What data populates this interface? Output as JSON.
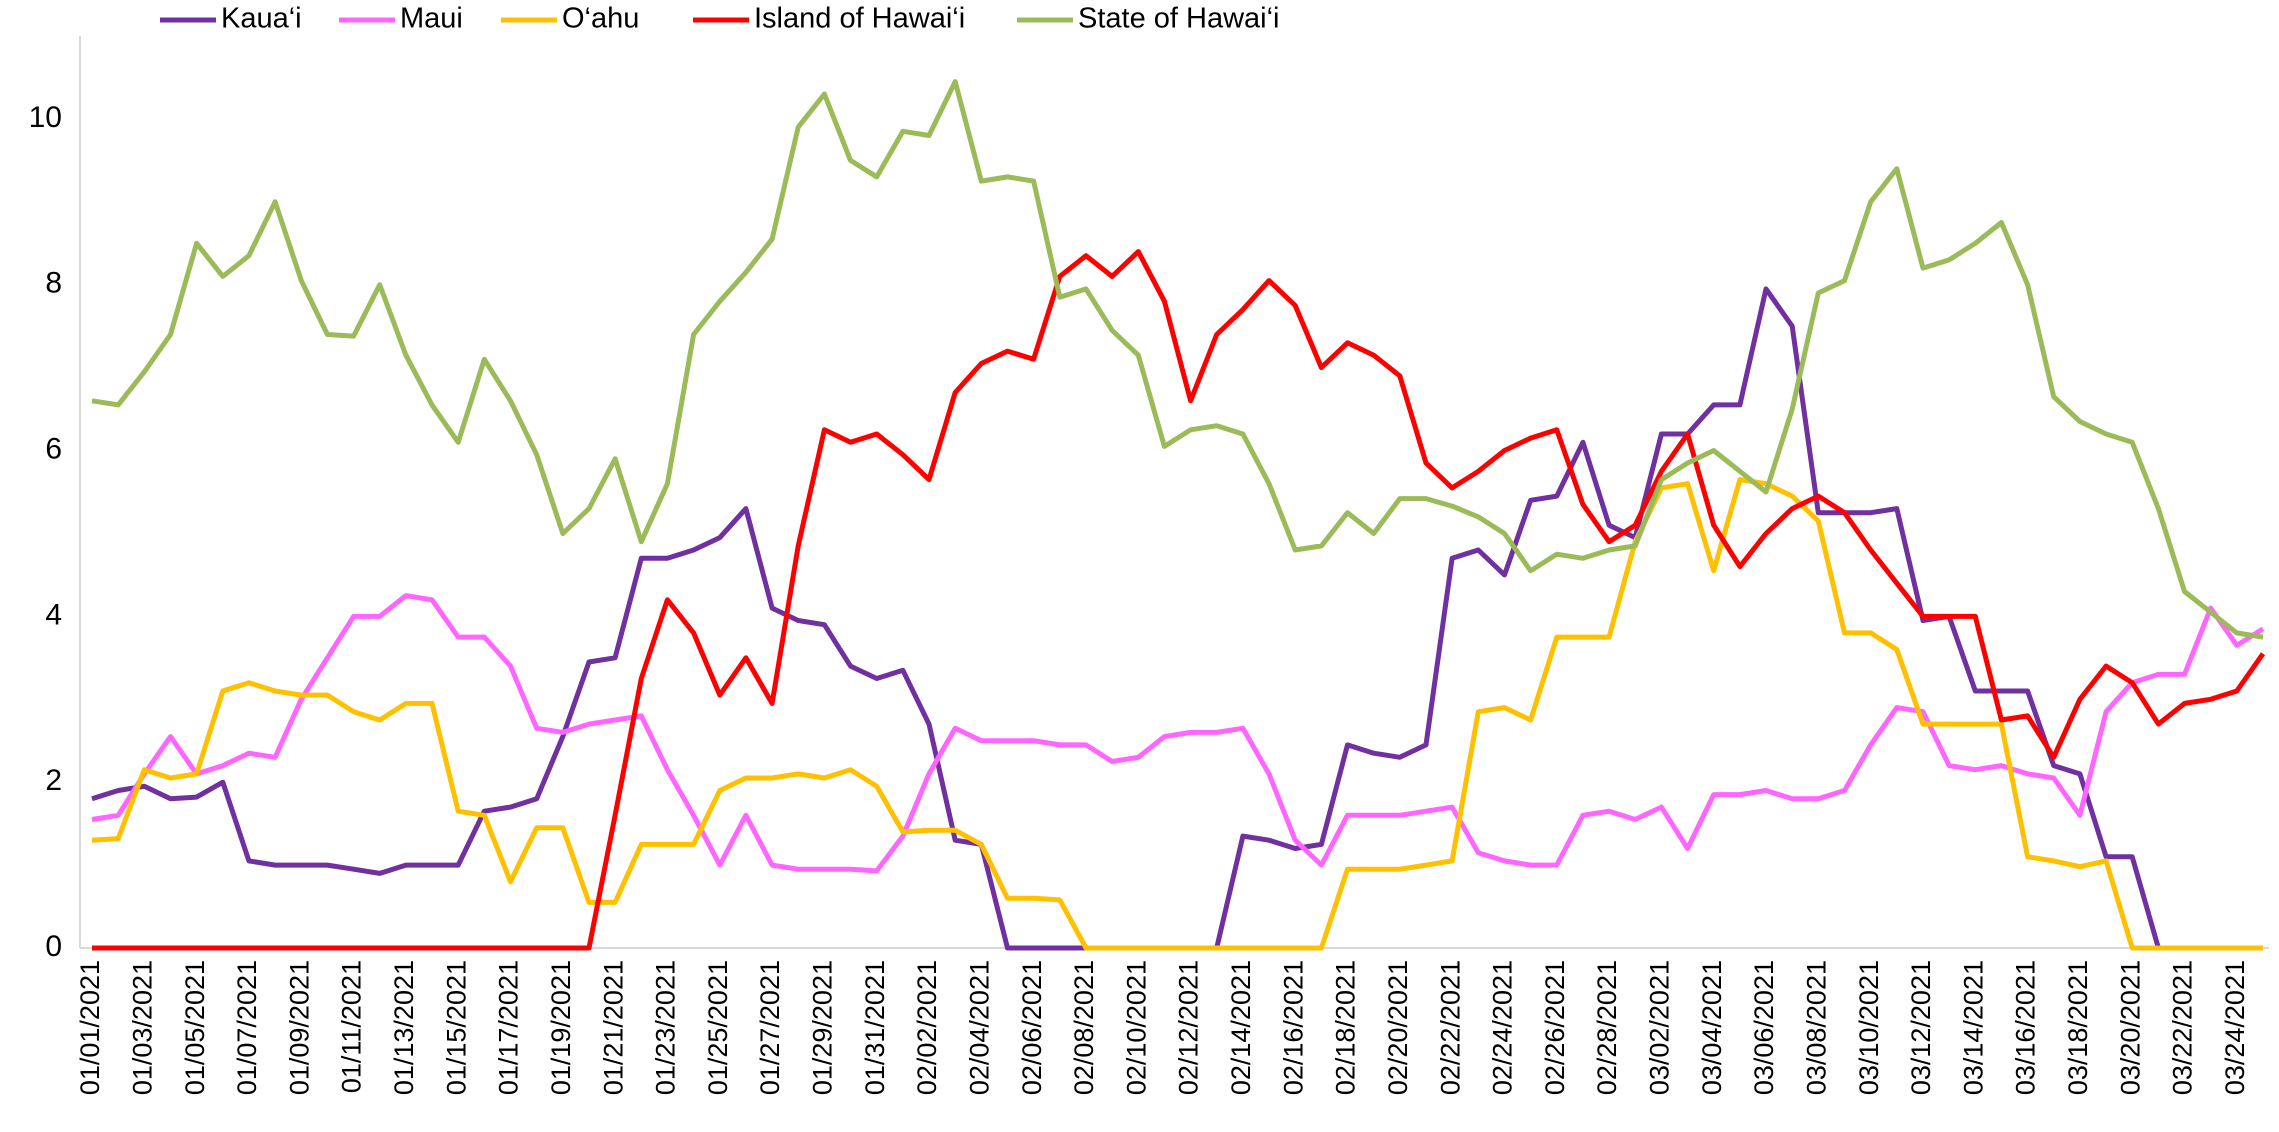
{
  "chart_data": {
    "type": "line",
    "categories": [
      "01/01/2021",
      null,
      "01/03/2021",
      null,
      "01/05/2021",
      null,
      "01/07/2021",
      null,
      "01/09/2021",
      null,
      "01/11/2021",
      null,
      "01/13/2021",
      null,
      "01/15/2021",
      null,
      "01/17/2021",
      null,
      "01/19/2021",
      null,
      "01/21/2021",
      null,
      "01/23/2021",
      null,
      "01/25/2021",
      null,
      "01/27/2021",
      null,
      "01/29/2021",
      null,
      "01/31/2021",
      null,
      "02/02/2021",
      null,
      "02/04/2021",
      null,
      "02/06/2021",
      null,
      "02/08/2021",
      null,
      "02/10/2021",
      null,
      "02/12/2021",
      null,
      "02/14/2021",
      null,
      "02/16/2021",
      null,
      "02/18/2021",
      null,
      "02/20/2021",
      null,
      "02/22/2021",
      null,
      "02/24/2021",
      null,
      "02/26/2021",
      null,
      "02/28/2021",
      null,
      "03/02/2021",
      null,
      "03/04/2021",
      null,
      "03/06/2021",
      null,
      "03/08/2021",
      null,
      "03/10/2021",
      null,
      "03/12/2021",
      null,
      "03/14/2021",
      null,
      "03/16/2021",
      null,
      "03/18/2021",
      null,
      "03/20/2021",
      null,
      "03/22/2021",
      null,
      "03/24/2021",
      null
    ],
    "series": [
      {
        "name": "Kaua‘i",
        "color": "#7030a0",
        "values": [
          1.8,
          1.9,
          1.95,
          1.8,
          1.82,
          2.0,
          1.05,
          1.0,
          1.0,
          1.0,
          0.95,
          0.9,
          1.0,
          1.0,
          1.0,
          1.65,
          1.7,
          1.8,
          2.55,
          3.45,
          3.5,
          4.7,
          4.7,
          4.8,
          4.95,
          5.3,
          4.1,
          3.95,
          3.9,
          3.4,
          3.25,
          3.35,
          2.7,
          1.3,
          1.25,
          0,
          0,
          0,
          0,
          0,
          0,
          0,
          0,
          0,
          1.35,
          1.3,
          1.2,
          1.25,
          2.45,
          2.35,
          2.3,
          2.45,
          4.7,
          4.8,
          4.5,
          5.4,
          5.45,
          6.1,
          5.1,
          4.95,
          6.2,
          6.2,
          6.55,
          6.55,
          7.95,
          7.5,
          5.25,
          5.25,
          5.25,
          5.3,
          3.95,
          4.0,
          3.1,
          3.1,
          3.1,
          2.2,
          2.1,
          1.1,
          1.1,
          0,
          0,
          0,
          0,
          0
        ]
      },
      {
        "name": "Maui",
        "color": "#ff66ff",
        "values": [
          1.55,
          1.6,
          2.1,
          2.55,
          2.1,
          2.2,
          2.35,
          2.3,
          3.0,
          3.5,
          4.0,
          4.0,
          4.25,
          4.2,
          3.75,
          3.75,
          3.4,
          2.65,
          2.6,
          2.7,
          2.75,
          2.8,
          2.15,
          1.6,
          1.0,
          1.6,
          1.0,
          0.95,
          0.95,
          0.95,
          0.93,
          1.35,
          2.1,
          2.65,
          2.5,
          2.5,
          2.5,
          2.45,
          2.45,
          2.25,
          2.3,
          2.55,
          2.6,
          2.6,
          2.65,
          2.1,
          1.3,
          1.0,
          1.6,
          1.6,
          1.6,
          1.65,
          1.7,
          1.15,
          1.05,
          1.0,
          1.0,
          1.6,
          1.65,
          1.55,
          1.7,
          1.2,
          1.85,
          1.85,
          1.9,
          1.8,
          1.8,
          1.9,
          2.45,
          2.9,
          2.85,
          2.2,
          2.15,
          2.2,
          2.1,
          2.05,
          1.6,
          2.85,
          3.2,
          3.3,
          3.3,
          4.1,
          3.65,
          3.85
        ]
      },
      {
        "name": "O‘ahu",
        "color": "#ffc000",
        "values": [
          1.3,
          1.32,
          2.15,
          2.05,
          2.1,
          3.1,
          3.2,
          3.1,
          3.05,
          3.05,
          2.85,
          2.75,
          2.95,
          2.95,
          1.65,
          1.6,
          0.8,
          1.45,
          1.45,
          0.55,
          0.55,
          1.25,
          1.25,
          1.25,
          1.9,
          2.05,
          2.05,
          2.1,
          2.05,
          2.15,
          1.95,
          1.4,
          1.42,
          1.42,
          1.25,
          0.6,
          0.6,
          0.58,
          0,
          0,
          0,
          0,
          0,
          0,
          0,
          0,
          0,
          0,
          0.95,
          0.95,
          0.95,
          1.0,
          1.05,
          2.85,
          2.9,
          2.75,
          3.75,
          3.75,
          3.75,
          4.9,
          5.55,
          5.6,
          4.55,
          5.65,
          5.6,
          5.45,
          5.15,
          3.8,
          3.8,
          3.6,
          2.7,
          2.7,
          2.7,
          2.7,
          1.1,
          1.05,
          0.98,
          1.05,
          0,
          0,
          0,
          0,
          0,
          0
        ]
      },
      {
        "name": "Island of Hawai‘i",
        "color": "#ff0000",
        "values": [
          0,
          0,
          0,
          0,
          0,
          0,
          0,
          0,
          0,
          0,
          0,
          0,
          0,
          0,
          0,
          0,
          0,
          0,
          0,
          0,
          1.6,
          3.25,
          4.2,
          3.8,
          3.05,
          3.5,
          2.95,
          4.85,
          6.25,
          6.1,
          6.2,
          5.95,
          5.65,
          6.7,
          7.05,
          7.2,
          7.1,
          8.1,
          8.35,
          8.1,
          8.4,
          7.8,
          6.6,
          7.4,
          7.7,
          8.05,
          7.75,
          7.0,
          7.3,
          7.15,
          6.9,
          5.85,
          5.55,
          5.75,
          6.0,
          6.15,
          6.25,
          5.35,
          4.9,
          5.1,
          5.75,
          6.2,
          5.1,
          4.6,
          5.0,
          5.3,
          5.45,
          5.25,
          4.8,
          4.4,
          4.0,
          4.0,
          4.0,
          2.75,
          2.8,
          2.3,
          3.0,
          3.4,
          3.2,
          2.7,
          2.95,
          3.0,
          3.1,
          3.55
        ]
      },
      {
        "name": "State of Hawai‘i",
        "color": "#9bbb59",
        "values": [
          6.6,
          6.55,
          6.95,
          7.4,
          8.5,
          8.1,
          8.35,
          9.0,
          8.05,
          7.4,
          7.38,
          8.0,
          7.15,
          6.55,
          6.1,
          7.1,
          6.6,
          5.95,
          5.0,
          5.3,
          5.9,
          4.9,
          5.6,
          7.4,
          7.8,
          8.15,
          8.55,
          9.9,
          10.3,
          9.5,
          9.3,
          9.85,
          9.8,
          10.45,
          9.25,
          9.3,
          9.25,
          7.85,
          7.95,
          7.45,
          7.15,
          6.05,
          6.25,
          6.3,
          6.2,
          5.6,
          4.8,
          4.85,
          5.25,
          5.0,
          5.42,
          5.42,
          5.33,
          5.2,
          5.0,
          4.55,
          4.75,
          4.7,
          4.8,
          4.85,
          5.65,
          5.85,
          6.0,
          5.75,
          5.5,
          6.5,
          7.9,
          8.05,
          9.0,
          9.4,
          8.2,
          8.3,
          8.5,
          8.75,
          8.0,
          6.65,
          6.35,
          6.2,
          6.1,
          5.3,
          4.3,
          4.05,
          3.8,
          3.75
        ]
      }
    ],
    "ylim": [
      0,
      11
    ],
    "yticks": [
      0,
      2,
      4,
      6,
      8,
      10
    ],
    "grid": false,
    "legend": "top"
  }
}
